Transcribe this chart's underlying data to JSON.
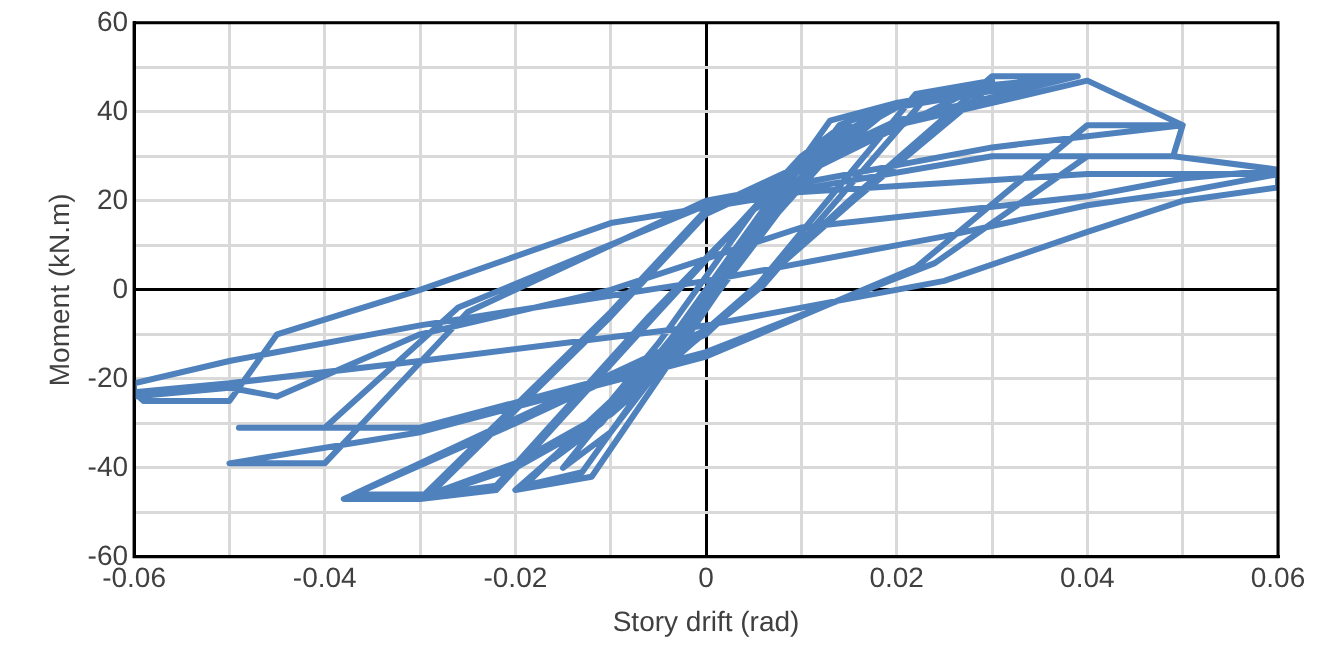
{
  "chart_data": {
    "type": "line",
    "xlabel": "Story drift (rad)",
    "ylabel": "Moment (kN.m)",
    "xlim": [
      -0.06,
      0.06
    ],
    "xticks": [
      -0.06,
      {
        "value": -0.05,
        "label": null
      },
      -0.04,
      {
        "value": -0.03,
        "label": null
      },
      -0.02,
      {
        "value": -0.01,
        "label": null
      },
      0,
      {
        "value": 0.01,
        "label": null
      },
      0.02,
      {
        "value": 0.03,
        "label": null
      },
      0.04,
      {
        "value": 0.05,
        "label": null
      },
      0.06
    ],
    "ylim": [
      -60,
      60
    ],
    "yticks": [
      -60,
      {
        "value": -50,
        "label": null
      },
      -40,
      {
        "value": -30,
        "label": null
      },
      -20,
      {
        "value": -10,
        "label": null
      },
      0,
      {
        "value": 10,
        "label": null
      },
      20,
      {
        "value": 30,
        "label": null
      },
      40,
      {
        "value": 50,
        "label": null
      },
      60
    ],
    "grid": true,
    "legend": false,
    "marker": "none",
    "line_style": "solid",
    "series": [
      {
        "color": "#4f81bd",
        "x": [
          0,
          0.005,
          0.01,
          0.005,
          -0.005,
          -0.01,
          -0.005,
          0.005,
          0.01,
          0.015,
          0.01,
          -0.005,
          -0.012,
          -0.015,
          -0.01,
          0.005,
          0.012,
          0.015,
          0.01,
          -0.004,
          -0.012,
          -0.016,
          -0.011,
          0.004,
          0.012,
          0.02,
          0.013,
          -0.003,
          -0.012,
          -0.02,
          -0.012,
          0.003,
          0.012,
          0.02,
          0.014,
          -0.002,
          -0.012,
          -0.019,
          -0.013,
          0.002,
          0.012,
          0.03,
          0.022,
          0.005,
          -0.01,
          -0.02,
          -0.03,
          -0.022,
          -0.005,
          0.01,
          0.02,
          0.03,
          0.023,
          0.006,
          -0.01,
          -0.02,
          -0.029,
          -0.022,
          -0.006,
          0.01,
          0.02,
          0.039,
          0.03,
          0.015,
          0,
          -0.02,
          -0.038,
          -0.03,
          -0.01,
          0,
          0.02,
          0.039,
          0.03,
          0.016,
          0,
          -0.02,
          -0.037,
          -0.029,
          -0.01,
          0,
          0.02,
          0.04,
          0.05,
          0.04,
          0.022,
          0,
          -0.03,
          -0.05,
          -0.04,
          -0.025,
          0,
          0.03,
          0.05,
          0.049,
          0.04,
          0.024,
          0,
          -0.03,
          -0.049,
          -0.04,
          -0.026,
          0,
          0.03,
          0.049,
          0.06,
          0.06,
          0.05,
          0.04,
          0.025,
          0,
          -0.03,
          -0.05,
          -0.06,
          -0.059,
          -0.05,
          -0.045,
          -0.03,
          -0.01,
          0.01,
          0.04,
          0.06,
          0.06,
          0.05,
          0.04,
          0.025,
          0,
          -0.03,
          -0.05,
          -0.06,
          -0.06,
          -0.05,
          -0.045,
          -0.03,
          -0.01,
          0.01,
          0.04,
          0.05,
          0.06
        ],
        "values": [
          0,
          12,
          25,
          18,
          -12,
          -25,
          -18,
          12,
          28,
          38,
          30,
          -15,
          -32,
          -40,
          -32,
          10,
          30,
          37,
          29,
          -14,
          -31,
          -38,
          -30,
          9,
          28,
          42,
          38,
          -10,
          -30,
          -45,
          -42,
          5,
          30,
          42,
          37,
          -9,
          -29,
          -44,
          -41,
          4,
          28,
          47,
          44,
          0,
          -28,
          -40,
          -47,
          -45,
          -5,
          30,
          42,
          46,
          43,
          1,
          -27,
          -39,
          -46,
          -44,
          -6,
          29,
          41,
          48,
          48,
          20,
          -10,
          -30,
          -47,
          -47,
          -5,
          18,
          38,
          48,
          46,
          21,
          -9,
          -29,
          -46,
          -46,
          -6,
          17,
          37,
          47,
          37,
          37,
          5,
          -15,
          -32,
          -39,
          -39,
          -5,
          20,
          32,
          37,
          30,
          30,
          6,
          -14,
          -31,
          -31,
          -31,
          -4,
          19,
          30,
          30,
          27,
          23,
          20,
          13,
          2,
          -8,
          -16,
          -21,
          -23,
          -25,
          -25,
          -10,
          0,
          15,
          22,
          26,
          26,
          26,
          22,
          19,
          12,
          2,
          -8,
          -16,
          -21,
          -24,
          -22,
          -24,
          -10,
          0,
          14,
          21,
          25,
          27
        ]
      }
    ]
  }
}
